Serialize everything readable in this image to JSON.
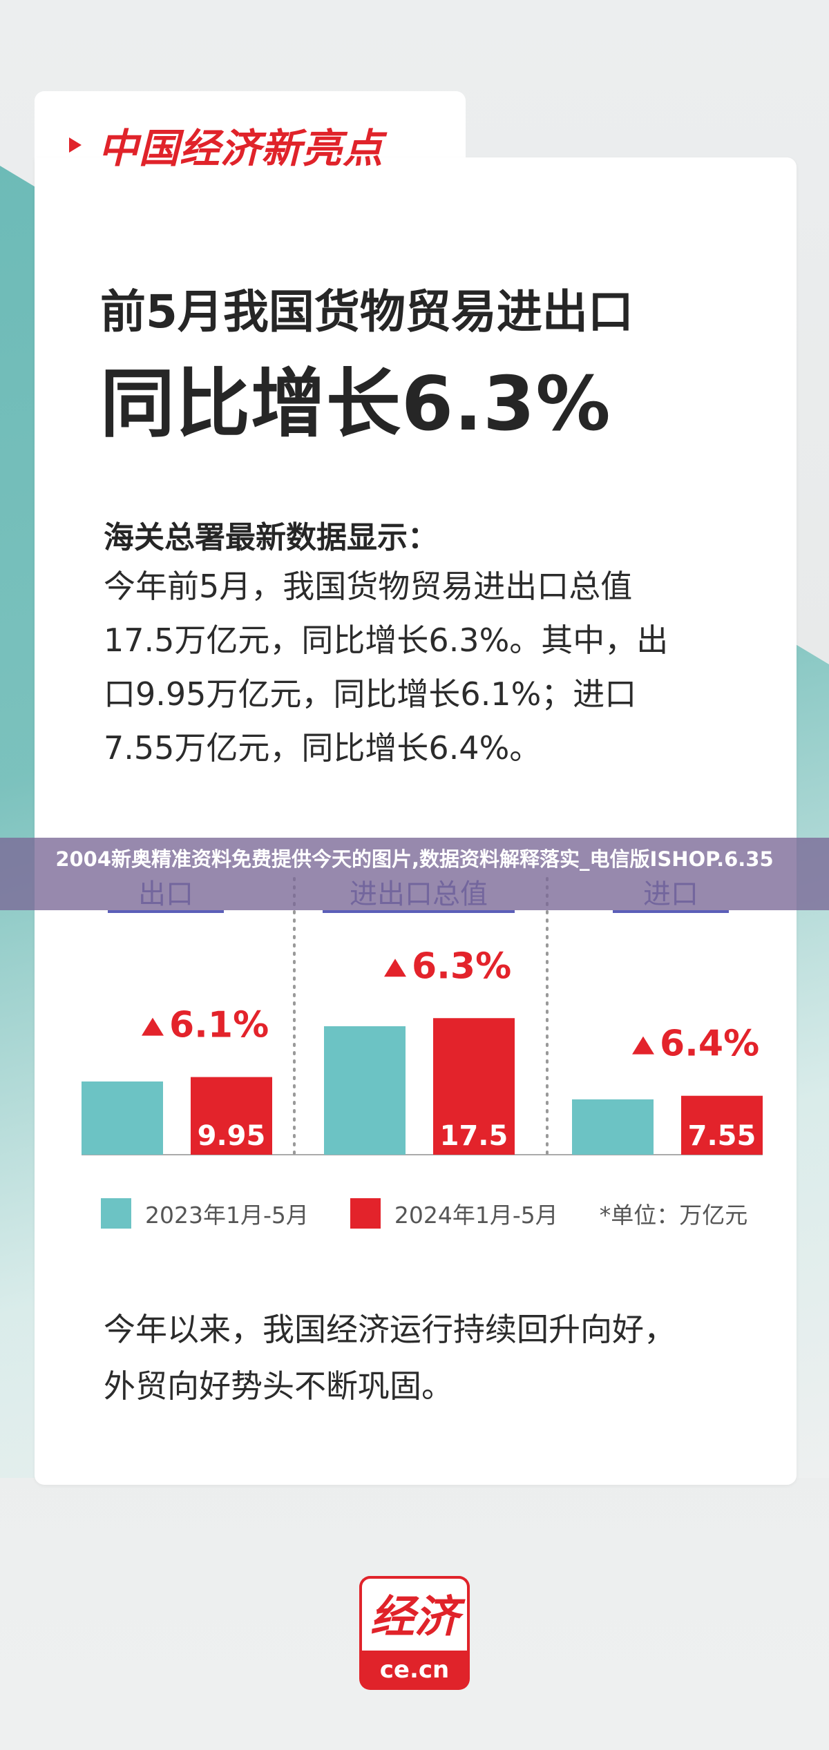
{
  "brand": {
    "title": "中国经济新亮点"
  },
  "headline": {
    "line1": "前5月我国货物贸易进出口",
    "line2": "同比增长6.3%"
  },
  "body": {
    "subhead": "海关总署最新数据显示：",
    "lines": [
      "今年前5月，我国货物贸易进出口总值",
      "17.5万亿元，同比增长6.3%。其中，出",
      "口9.95万亿元，同比增长6.1%；进口",
      "7.55万亿元，同比增长6.4%。"
    ]
  },
  "overlay": {
    "text": "2004新奥精准资料免费提供今天的图片,数据资料解释落实_电信版ISHOP.6.35"
  },
  "chart_data": {
    "type": "bar",
    "categories": [
      "出口",
      "进出口总值",
      "进口"
    ],
    "series": [
      {
        "name": "2023年1月-5月",
        "color": "#6cc3c4",
        "values": [
          9.38,
          16.46,
          7.09
        ]
      },
      {
        "name": "2024年1月-5月",
        "color": "#e3232b",
        "values": [
          9.95,
          17.5,
          7.55
        ]
      }
    ],
    "value_labels": [
      "9.95",
      "17.5",
      "7.55"
    ],
    "growth_labels": [
      "6.1%",
      "6.3%",
      "6.4%"
    ],
    "unit_note": "*单位：万亿元"
  },
  "closing": {
    "lines": [
      "今年以来，我国经济运行持续回升向好，",
      "外贸向好势头不断巩固。"
    ]
  },
  "logo": {
    "glyphs": "经济",
    "domain": "ce.cn"
  }
}
